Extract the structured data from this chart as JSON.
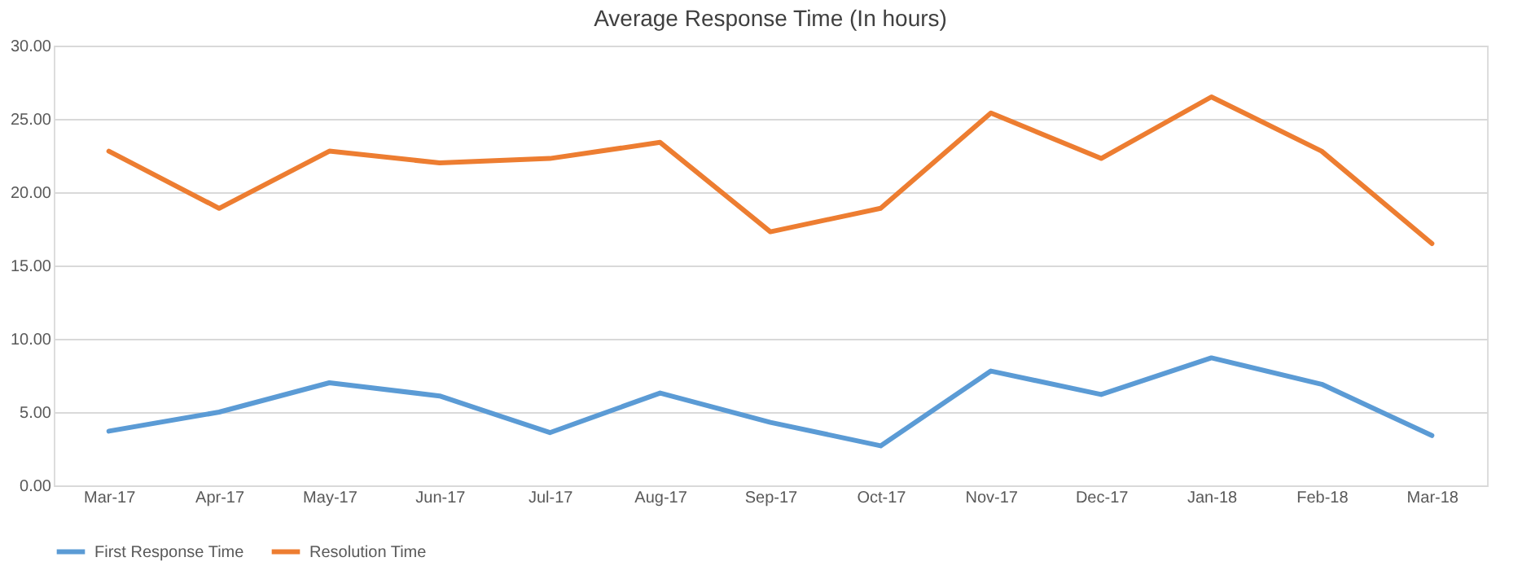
{
  "chart_data": {
    "type": "line",
    "title": "Average Response Time (In hours)",
    "categories": [
      "Mar-17",
      "Apr-17",
      "May-17",
      "Jun-17",
      "Jul-17",
      "Aug-17",
      "Sep-17",
      "Oct-17",
      "Nov-17",
      "Dec-17",
      "Jan-18",
      "Feb-18",
      "Mar-18"
    ],
    "series": [
      {
        "name": "First Response Time",
        "color": "#5b9bd5",
        "values": [
          3.7,
          5.0,
          7.0,
          6.1,
          3.6,
          6.3,
          4.3,
          2.7,
          7.8,
          6.2,
          8.7,
          6.9,
          3.4
        ]
      },
      {
        "name": "Resolution Time",
        "color": "#ed7d31",
        "values": [
          22.8,
          18.9,
          22.8,
          22.0,
          22.3,
          23.4,
          17.3,
          18.9,
          25.4,
          22.3,
          26.5,
          22.8,
          16.5
        ]
      }
    ],
    "ylim": [
      0,
      30
    ],
    "yticks": [
      {
        "value": 0,
        "label": "0.00"
      },
      {
        "value": 5,
        "label": "5.00"
      },
      {
        "value": 10,
        "label": "10.00"
      },
      {
        "value": 15,
        "label": "15.00"
      },
      {
        "value": 20,
        "label": "20.00"
      },
      {
        "value": 25,
        "label": "25.00"
      },
      {
        "value": 30,
        "label": "30.00"
      }
    ],
    "grid": "y",
    "legend": "bottom",
    "marker": "none",
    "line_style": "solid"
  }
}
